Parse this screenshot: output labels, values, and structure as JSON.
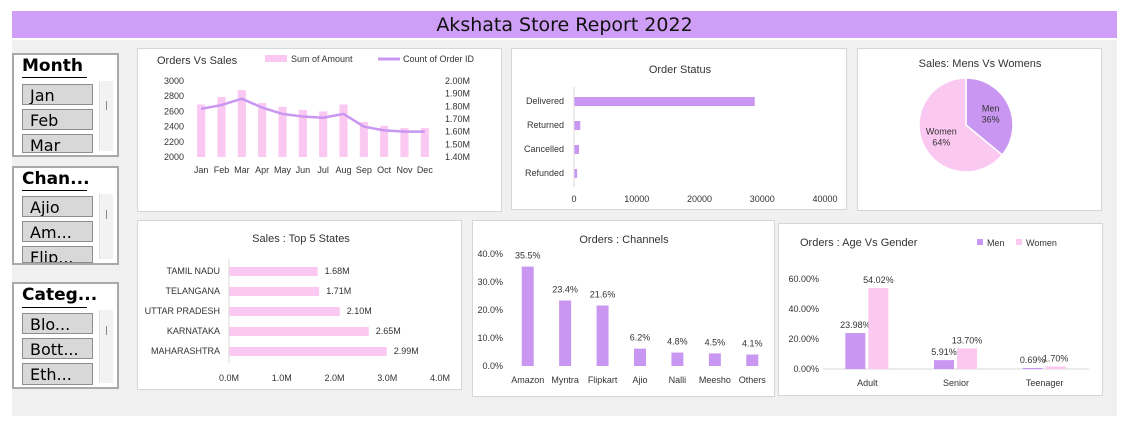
{
  "report_title": "Akshata Store Report 2022",
  "slicers": [
    {
      "title": "Month",
      "items": [
        "Jan",
        "Feb",
        "Mar"
      ]
    },
    {
      "title": "Chan...",
      "items": [
        "Ajio",
        "Am...",
        "Flip..."
      ]
    },
    {
      "title": "Categ...",
      "items": [
        "Blo...",
        "Bott...",
        "Eth..."
      ]
    }
  ],
  "colors": {
    "purple": "#c996f1",
    "pink": "#fbc8f2",
    "title_bar": "#cf9ef7"
  },
  "chart_data": [
    {
      "id": "orders-vs-sales",
      "type": "bar",
      "title": "Orders Vs Sales",
      "categories": [
        "Jan",
        "Feb",
        "Mar",
        "Apr",
        "May",
        "Jun",
        "Jul",
        "Aug",
        "Sep",
        "Oct",
        "Nov",
        "Dec"
      ],
      "series": [
        {
          "name": "Sum of Amount",
          "type": "bar",
          "axis": "left",
          "values": [
            2690,
            2790,
            2880,
            2710,
            2660,
            2620,
            2600,
            2690,
            2460,
            2410,
            2380,
            2380
          ]
        },
        {
          "name": "Count of Order ID",
          "type": "line",
          "axis": "right",
          "values": [
            1780000,
            1810000,
            1860000,
            1790000,
            1740000,
            1720000,
            1710000,
            1740000,
            1640000,
            1610000,
            1600000,
            1600000
          ]
        }
      ],
      "ylim": [
        2000,
        3000
      ],
      "yticks": [
        "3000",
        "2800",
        "2600",
        "2400",
        "2200",
        "2000"
      ],
      "y2lim": [
        1400000,
        2000000
      ],
      "y2ticks": [
        "2.00M",
        "1.90M",
        "1.80M",
        "1.70M",
        "1.60M",
        "1.50M",
        "1.40M"
      ],
      "legend": "top"
    },
    {
      "id": "order-status",
      "type": "bar",
      "orientation": "horizontal",
      "title": "Order Status",
      "categories": [
        "Delivered",
        "Returned",
        "Cancelled",
        "Refunded"
      ],
      "values": [
        28800,
        1000,
        800,
        500
      ],
      "xlim": [
        0,
        40000
      ],
      "xticks": [
        "0",
        "10000",
        "20000",
        "30000",
        "40000"
      ]
    },
    {
      "id": "mens-vs-womens",
      "type": "pie",
      "title": "Sales: Mens Vs Womens",
      "labels": [
        "Men",
        "Women"
      ],
      "values": [
        36,
        64
      ],
      "value_labels": [
        "36%",
        "64%"
      ]
    },
    {
      "id": "top-5-states",
      "type": "bar",
      "orientation": "horizontal",
      "title": "Sales : Top 5 States",
      "categories": [
        "TAMIL NADU",
        "TELANGANA",
        "UTTAR PRADESH",
        "KARNATAKA",
        "MAHARASHTRA"
      ],
      "values": [
        1.68,
        1.71,
        2.1,
        2.65,
        2.99
      ],
      "value_labels": [
        "1.68M",
        "1.71M",
        "2.10M",
        "2.65M",
        "2.99M"
      ],
      "xlim": [
        0,
        4
      ],
      "xticks": [
        "0.0M",
        "1.0M",
        "2.0M",
        "3.0M",
        "4.0M"
      ]
    },
    {
      "id": "orders-channels",
      "type": "bar",
      "title": "Orders : Channels",
      "categories": [
        "Amazon",
        "Myntra",
        "Flipkart",
        "Ajio",
        "Nalli",
        "Meesho",
        "Others"
      ],
      "values": [
        35.5,
        23.4,
        21.6,
        6.2,
        4.8,
        4.5,
        4.1
      ],
      "value_labels": [
        "35.5%",
        "23.4%",
        "21.6%",
        "6.2%",
        "4.8%",
        "4.5%",
        "4.1%"
      ],
      "ylim": [
        0,
        40
      ],
      "yticks": [
        "40.0%",
        "30.0%",
        "20.0%",
        "10.0%",
        "0.0%"
      ]
    },
    {
      "id": "age-vs-gender",
      "type": "bar",
      "title": "Orders : Age Vs Gender",
      "categories": [
        "Adult",
        "Senior",
        "Teenager"
      ],
      "series": [
        {
          "name": "Men",
          "values": [
            23.98,
            5.91,
            0.69
          ],
          "value_labels": [
            "23.98%",
            "5.91%",
            "0.69%"
          ]
        },
        {
          "name": "Women",
          "values": [
            54.02,
            13.7,
            1.7
          ],
          "value_labels": [
            "54.02%",
            "13.70%",
            "1.70%"
          ]
        }
      ],
      "ylim": [
        0,
        70
      ],
      "yticks": [
        "60.00%",
        "40.00%",
        "20.00%",
        "0.00%"
      ],
      "legend": "top-right"
    }
  ]
}
